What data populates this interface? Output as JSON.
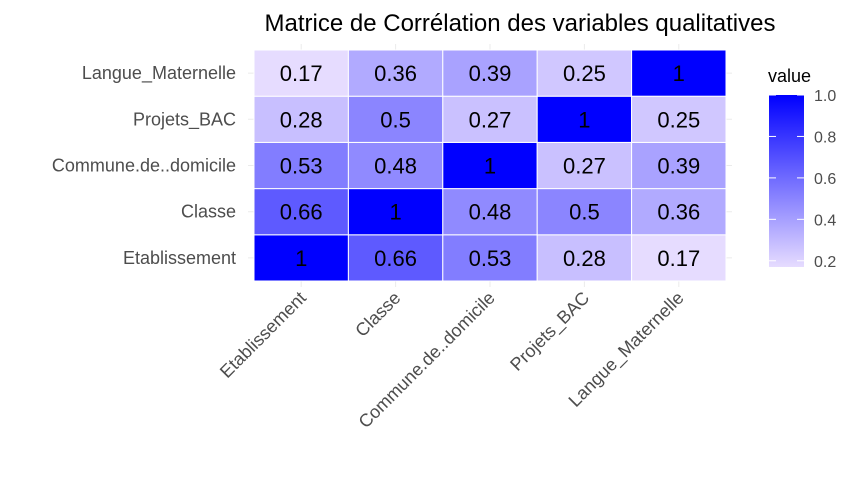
{
  "chart_data": {
    "type": "heatmap",
    "title": "Matrice de Corrélation des variables qualitatives",
    "xlabel": "",
    "ylabel": "",
    "x_categories": [
      "Etablissement",
      "Classe",
      "Commune.de..domicile",
      "Projets_BAC",
      "Langue_Maternelle"
    ],
    "y_categories": [
      "Etablissement",
      "Classe",
      "Commune.de..domicile",
      "Projets_BAC",
      "Langue_Maternelle"
    ],
    "values": [
      [
        1,
        0.66,
        0.53,
        0.28,
        0.17
      ],
      [
        0.66,
        1,
        0.48,
        0.5,
        0.36
      ],
      [
        0.53,
        0.48,
        1,
        0.27,
        0.39
      ],
      [
        0.28,
        0.5,
        0.27,
        1,
        0.25
      ],
      [
        0.17,
        0.36,
        0.39,
        0.25,
        1
      ]
    ],
    "value_range": [
      0.17,
      1
    ],
    "colors": {
      "low": "#e6dcff",
      "high": "#0000ff"
    },
    "legend": {
      "title": "value",
      "position": "right",
      "ticks": [
        0.2,
        0.4,
        0.6,
        0.8,
        1.0
      ],
      "tick_labels": [
        "0.2",
        "0.4",
        "0.6",
        "0.8",
        "1.0"
      ]
    },
    "grid": true
  }
}
